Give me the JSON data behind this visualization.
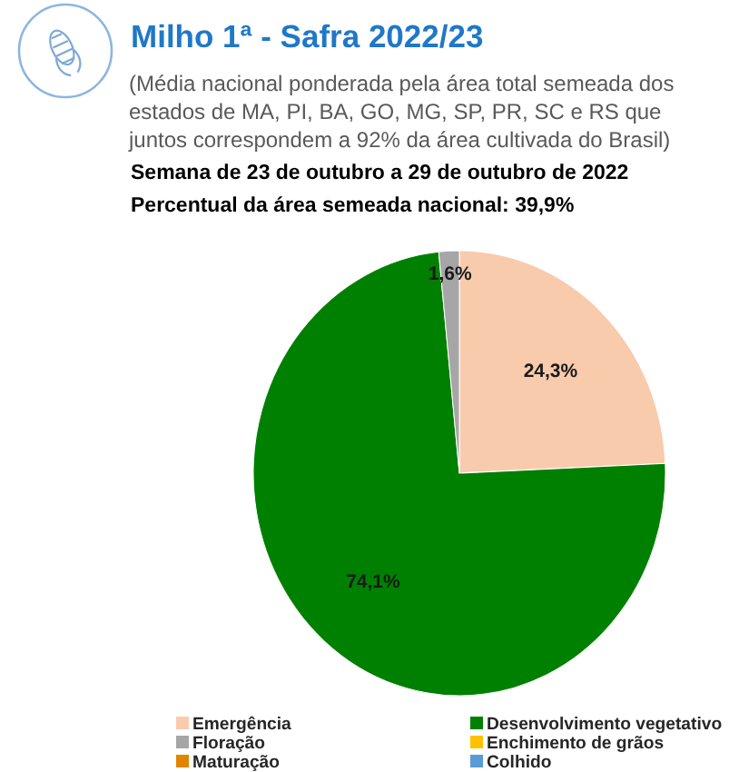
{
  "chart_data": {
    "type": "pie",
    "title": "Milho 1ª - Safra 2022/23",
    "subtitle": "(Média nacional ponderada pela área total semeada dos estados de MA, PI, BA, GO, MG, SP, PR, SC e RS que juntos correspondem a 92% da área cultivada do Brasil)",
    "annotations": [
      "Semana de 23 de outubro a 29 de outubro de 2022",
      "Percentual da área semeada nacional: 39,9%"
    ],
    "categories": [
      "Emergência",
      "Desenvolvimento vegetativo",
      "Floração",
      "Enchimento de grãos",
      "Maturação",
      "Colhido"
    ],
    "values": [
      24.3,
      74.1,
      1.6,
      0,
      0,
      0
    ],
    "colors": [
      "#f8cbad",
      "#008000",
      "#a6a6a6",
      "#ffc000",
      "#e08600",
      "#5b9bd5"
    ],
    "value_labels": [
      "24,3%",
      "74,1%",
      "1,6%",
      null,
      null,
      null
    ],
    "legend": "bottom"
  }
}
